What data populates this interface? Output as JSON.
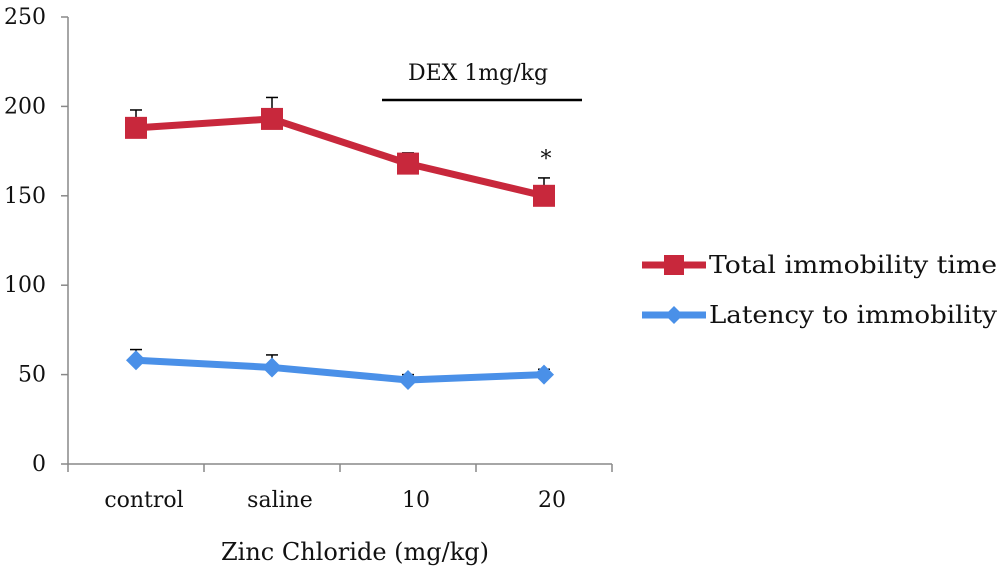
{
  "chart_data": {
    "type": "line",
    "categories": [
      "control",
      "saline",
      "10",
      "20"
    ],
    "xlabel": "Zinc Chloride (mg/kg)",
    "ylabel": "",
    "ylim": [
      0,
      250
    ],
    "yticks": [
      "0",
      "50",
      "100",
      "150",
      "200",
      "250"
    ],
    "grid": false,
    "legend_position": "right",
    "series": [
      {
        "name": "Total immobility time",
        "color": "#c8283c",
        "marker": "square",
        "values": [
          188,
          193,
          168,
          150
        ],
        "error": [
          10,
          12,
          6,
          10
        ]
      },
      {
        "name": "Latency to immobility",
        "color": "#4a90e8",
        "marker": "diamond",
        "values": [
          58,
          54,
          47,
          50
        ],
        "error": [
          6,
          7,
          3,
          3
        ]
      }
    ],
    "annotations": {
      "dex_label": "DEX 1mg/kg",
      "significance": "*"
    }
  }
}
